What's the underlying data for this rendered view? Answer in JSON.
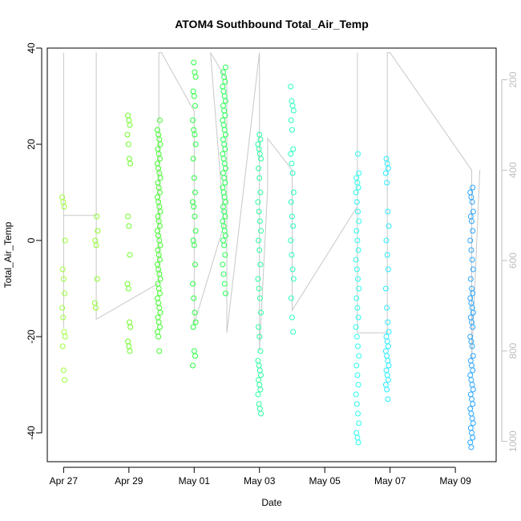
{
  "chart_data": {
    "type": "scatter",
    "title": "ATOM4 Southbound Total_Air_Temp",
    "xlabel": "Date",
    "ylabel": "Total_Air_Temp",
    "xlim": [
      "2019-04-26T12:00",
      "2019-05-10T06:00"
    ],
    "ylim": [
      -46,
      40
    ],
    "x_ticks": [
      {
        "date": "2019-04-27",
        "label": "Apr 27"
      },
      {
        "date": "2019-04-29",
        "label": "Apr 29"
      },
      {
        "date": "2019-05-01",
        "label": "May 01"
      },
      {
        "date": "2019-05-03",
        "label": "May 03"
      },
      {
        "date": "2019-05-05",
        "label": "May 05"
      },
      {
        "date": "2019-05-07",
        "label": "May 07"
      },
      {
        "date": "2019-05-09",
        "label": "May 09"
      }
    ],
    "y_ticks": [
      -40,
      -20,
      0,
      20,
      40
    ],
    "secondary_axis": {
      "description": "pressure/altitude profile (grey line)",
      "lim": [
        130,
        1045
      ],
      "ticks": [
        200,
        400,
        600,
        800,
        1000
      ],
      "inverted": true,
      "color": "#bdbdbd"
    },
    "grid": false,
    "legend": "none",
    "series": [
      {
        "x": "2019-04-27T00:00",
        "color": "#9cff3a",
        "values": [
          9,
          8,
          7,
          0,
          -6,
          -8,
          -11,
          -14,
          -16,
          -19,
          -20,
          -22,
          -27,
          -29
        ]
      },
      {
        "x": "2019-04-28T00:00",
        "color": "#8dff2e",
        "values": [
          5,
          2,
          0,
          -1,
          -8,
          -13,
          -14
        ]
      },
      {
        "x": "2019-04-29T00:00",
        "color": "#6dff2a",
        "values": [
          26,
          25,
          24,
          22,
          20,
          17,
          16,
          5,
          3,
          -3,
          -9,
          -10,
          -17,
          -18,
          -21,
          -22,
          -23
        ]
      },
      {
        "x": "2019-04-29T22:00",
        "color": "#41ff2a",
        "values": [
          25,
          23,
          22,
          21,
          20,
          19,
          18,
          17,
          16,
          15,
          14,
          13,
          12,
          11,
          10,
          9,
          8,
          7,
          6,
          5,
          4,
          3,
          2,
          1,
          0,
          -1,
          -2,
          -3,
          -4,
          -5,
          -6,
          -7,
          -8,
          -9,
          -10,
          -11,
          -12,
          -13,
          -14,
          -15,
          -16,
          -17,
          -18,
          -19,
          -20,
          -23
        ]
      },
      {
        "x": "2019-05-01T00:00",
        "color": "#2cff45",
        "values": [
          37,
          35,
          34,
          31,
          30,
          28,
          25,
          23,
          22,
          20,
          17,
          13,
          10,
          8,
          7,
          5,
          2,
          0,
          -1,
          -5,
          -9,
          -12,
          -15,
          -17,
          -18,
          -23,
          -24,
          -26
        ]
      },
      {
        "x": "2019-05-01T22:00",
        "color": "#2aff55",
        "values": [
          36,
          35,
          34,
          33,
          32,
          31,
          30,
          29,
          28,
          27,
          26,
          25,
          24,
          23,
          22,
          21,
          20,
          19,
          18,
          17,
          16,
          15,
          14,
          13,
          12,
          11,
          10,
          9,
          8,
          7,
          6,
          5,
          4,
          3,
          2,
          1,
          0,
          -1,
          -3,
          -5,
          -7,
          -9,
          -11
        ]
      },
      {
        "x": "2019-05-03T00:00",
        "color": "#2affa0",
        "values": [
          22,
          21,
          20,
          19,
          18,
          17,
          15,
          13,
          10,
          8,
          6,
          4,
          2,
          0,
          -2,
          -5,
          -8,
          -10,
          -12,
          -15,
          -18,
          -20,
          -23,
          -25,
          -26,
          -27,
          -28,
          -29,
          -30,
          -31,
          -32,
          -34,
          -35,
          -36
        ]
      },
      {
        "x": "2019-05-04T00:00",
        "color": "#2affc0",
        "values": [
          32,
          29,
          28,
          27,
          25,
          23,
          19,
          18,
          16,
          14,
          10,
          8,
          5,
          3,
          0,
          -3,
          -6,
          -8,
          -12,
          -16,
          -19
        ]
      },
      {
        "x": "2019-05-06T00:00",
        "color": "#2affee",
        "values": [
          18,
          14,
          13,
          12,
          11,
          10,
          8,
          6,
          4,
          2,
          0,
          -2,
          -4,
          -6,
          -8,
          -10,
          -12,
          -14,
          -16,
          -18,
          -20,
          -22,
          -24,
          -26,
          -28,
          -30,
          -32,
          -34,
          -36,
          -38,
          -40,
          -41,
          -42
        ]
      },
      {
        "x": "2019-05-06T22:00",
        "color": "#2aecff",
        "values": [
          17,
          16,
          15,
          14,
          12,
          6,
          3,
          0,
          -3,
          -6,
          -10,
          -14,
          -17,
          -19,
          -20,
          -21,
          -22,
          -23,
          -24,
          -25,
          -26,
          -27,
          -28,
          -29,
          -30,
          -31,
          -33
        ]
      },
      {
        "x": "2019-05-09T12:00",
        "color": "#2aa6ff",
        "values": [
          11,
          10,
          9,
          8,
          6,
          5,
          4,
          2,
          0,
          -2,
          -4,
          -6,
          -8,
          -10,
          -11,
          -12,
          -13,
          -14,
          -15,
          -16,
          -17,
          -18,
          -20,
          -21,
          -22,
          -24,
          -25,
          -26,
          -27,
          -28,
          -29,
          -30,
          -31,
          -32,
          -33,
          -34,
          -35,
          -36,
          -37,
          -38,
          -39,
          -40,
          -41,
          -42,
          -43
        ]
      }
    ],
    "profile_line": [
      {
        "x": "2019-04-27T00:00",
        "p": 750
      },
      {
        "x": "2019-04-27T00:00",
        "p": 140
      },
      {
        "x": "2019-04-27T00:00",
        "p": 500
      },
      {
        "x": "2019-04-28T00:00",
        "p": 500
      },
      {
        "x": "2019-04-28T00:00",
        "p": 140
      },
      {
        "x": "2019-04-28T00:00",
        "p": 730
      },
      {
        "x": "2019-04-29T22:00",
        "p": 650
      },
      {
        "x": "2019-04-29T22:00",
        "p": 140
      },
      {
        "x": "2019-04-30T00:00",
        "p": 140
      },
      {
        "x": "2019-05-01T00:00",
        "p": 270
      },
      {
        "x": "2019-05-01T00:00",
        "p": 740
      },
      {
        "x": "2019-05-01T22:00",
        "p": 520
      },
      {
        "x": "2019-05-01T12:00",
        "p": 140
      },
      {
        "x": "2019-05-02T00:00",
        "p": 200
      },
      {
        "x": "2019-05-02T00:00",
        "p": 760
      },
      {
        "x": "2019-05-03T00:00",
        "p": 140
      },
      {
        "x": "2019-05-03T00:00",
        "p": 800
      },
      {
        "x": "2019-05-03T06:00",
        "p": 440
      },
      {
        "x": "2019-05-03T06:00",
        "p": 330
      },
      {
        "x": "2019-05-04T00:00",
        "p": 400
      },
      {
        "x": "2019-05-04T00:00",
        "p": 710
      },
      {
        "x": "2019-05-06T00:00",
        "p": 480
      },
      {
        "x": "2019-05-06T00:00",
        "p": 140
      },
      {
        "x": "2019-05-06T00:00",
        "p": 760
      },
      {
        "x": "2019-05-06T22:00",
        "p": 760
      },
      {
        "x": "2019-05-06T22:00",
        "p": 140
      },
      {
        "x": "2019-05-07T00:00",
        "p": 140
      },
      {
        "x": "2019-05-09T12:00",
        "p": 400
      },
      {
        "x": "2019-05-09T12:00",
        "p": 820
      },
      {
        "x": "2019-05-09T18:00",
        "p": 400
      }
    ]
  }
}
